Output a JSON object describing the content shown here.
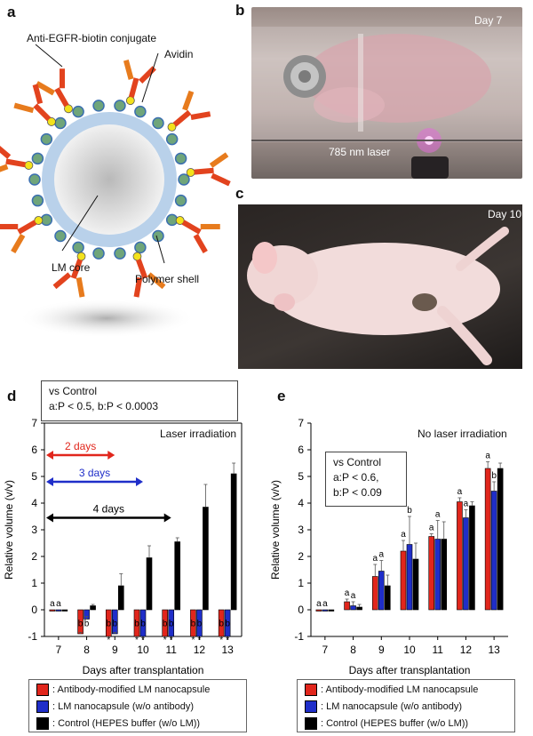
{
  "panels": {
    "a": {
      "label": "a",
      "conjugate_label": "Anti-EGFR-biotin conjugate",
      "avidin_label": "Avidin",
      "core_label": "LM core",
      "shell_label": "Polymer shell"
    },
    "b": {
      "label": "b",
      "day": "Day 7",
      "laser_label": "785 nm laser"
    },
    "c": {
      "label": "c",
      "day": "Day 10"
    },
    "d": {
      "label": "d",
      "stats_title": "vs Control",
      "stats_line": "a:P < 0.5, b:P < 0.0003",
      "corner_text": "Laser irradiation",
      "arrows": [
        {
          "label": "2 days",
          "to_day": 9,
          "color": "#e1261c"
        },
        {
          "label": "3 days",
          "to_day": 10,
          "color": "#1f2ec9"
        },
        {
          "label": "4 days",
          "to_day": 11,
          "color": "#000000"
        }
      ]
    },
    "e": {
      "label": "e",
      "corner_text": "No laser irradiation",
      "stats_title": "vs Control",
      "stats_line1": "a:P < 0.6,",
      "stats_line2": "b:P < 0.09"
    }
  },
  "legend": {
    "items": [
      {
        "label": ": Antibody-modified LM nanocapsule",
        "color": "#e1261c"
      },
      {
        "label": ": LM nanocapsule (w/o antibody)",
        "color": "#1f2ec9"
      },
      {
        "label": ": Control (HEPES buffer (w/o LM))",
        "color": "#000000"
      }
    ]
  },
  "chart_data": [
    {
      "type": "bar",
      "panel": "d",
      "xlabel": "Days after transplantation",
      "ylabel": "Relative volume (v/v)",
      "ylim": [
        -1,
        7
      ],
      "yticks": [
        -1,
        0,
        1,
        2,
        3,
        4,
        5,
        6,
        7
      ],
      "categories": [
        "7",
        "8",
        "9",
        "10",
        "11",
        "12",
        "13"
      ],
      "series": [
        {
          "name": "Antibody-modified LM nanocapsule",
          "color": "#e1261c",
          "values": [
            0,
            -0.9,
            -1,
            -1,
            -1,
            -1,
            -1
          ],
          "errors": [
            0,
            0.05,
            0,
            0,
            0,
            0,
            0
          ],
          "annot_top": [
            "a",
            "",
            "",
            "",
            "",
            "",
            ""
          ],
          "annot_b": [
            "",
            "b",
            "b",
            "b",
            "b",
            "b",
            "b"
          ],
          "star": [
            "",
            "",
            "*",
            "*",
            "*",
            "*",
            "*"
          ]
        },
        {
          "name": "LM nanocapsule (w/o antibody)",
          "color": "#1f2ec9",
          "values": [
            0,
            -0.35,
            -0.9,
            -1,
            -1,
            -1,
            -1
          ],
          "errors": [
            0,
            0.1,
            0.05,
            0,
            0,
            0,
            0
          ],
          "annot_top": [
            "a",
            "",
            "",
            "",
            "",
            "",
            ""
          ],
          "annot_b": [
            "",
            "b",
            "b",
            "b",
            "b",
            "b",
            "b"
          ],
          "star": [
            "",
            "",
            "",
            "*",
            "*",
            "*",
            "*"
          ]
        },
        {
          "name": "Control (HEPES buffer (w/o LM))",
          "color": "#000000",
          "values": [
            0,
            0.15,
            0.9,
            1.95,
            2.55,
            3.85,
            5.1
          ],
          "errors": [
            0,
            0.05,
            0.45,
            0.45,
            0.15,
            0.85,
            0.4
          ]
        }
      ]
    },
    {
      "type": "bar",
      "panel": "e",
      "xlabel": "Days after transplantation",
      "ylabel": "Relative volume (v/v)",
      "ylim": [
        -1,
        7
      ],
      "yticks": [
        -1,
        0,
        1,
        2,
        3,
        4,
        5,
        6,
        7
      ],
      "categories": [
        "7",
        "8",
        "9",
        "10",
        "11",
        "12",
        "13"
      ],
      "series": [
        {
          "name": "Antibody-modified LM nanocapsule",
          "color": "#e1261c",
          "values": [
            0,
            0.3,
            1.25,
            2.2,
            2.75,
            4.05,
            5.3
          ],
          "errors": [
            0,
            0.1,
            0.45,
            0.4,
            0.1,
            0.15,
            0.25
          ],
          "annot_top": [
            "a",
            "a",
            "a",
            "a",
            "a",
            "a",
            "a"
          ]
        },
        {
          "name": "LM nanocapsule (w/o antibody)",
          "color": "#1f2ec9",
          "values": [
            0,
            0.15,
            1.45,
            2.45,
            2.65,
            3.45,
            4.45
          ],
          "errors": [
            0,
            0.15,
            0.4,
            1.05,
            0.7,
            0.3,
            0.35
          ],
          "annot_top": [
            "a",
            "a",
            "a",
            "b",
            "a",
            "a",
            "b"
          ]
        },
        {
          "name": "Control (HEPES buffer (w/o LM))",
          "color": "#000000",
          "values": [
            0,
            0.1,
            0.9,
            1.9,
            2.65,
            3.9,
            5.3
          ],
          "errors": [
            0,
            0.1,
            0.4,
            0.6,
            0.65,
            0.15,
            0.2
          ]
        }
      ]
    }
  ]
}
